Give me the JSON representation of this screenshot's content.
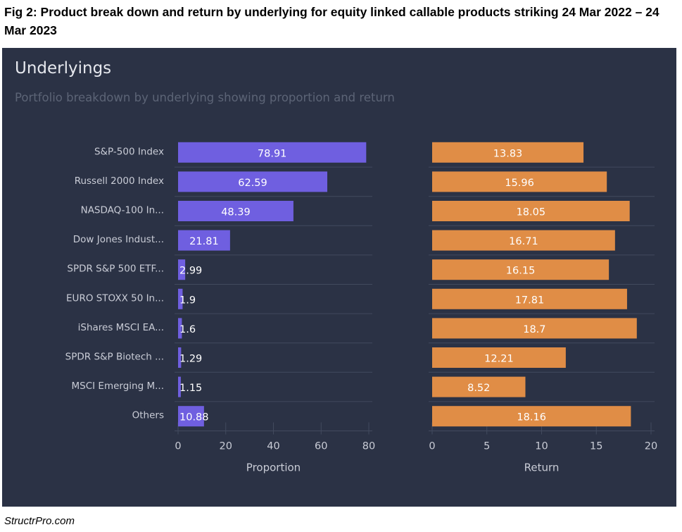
{
  "figure": {
    "title": "Fig 2: Product break down and return by underlying for equity linked callable products striking 24 Mar 2022 – 24 Mar 2023",
    "footer": "StructrPro.com"
  },
  "panel": {
    "title": "Underlyings",
    "subtitle": "Portfolio breakdown by underlying showing proportion and return"
  },
  "colors": {
    "background": "#2b3245",
    "proportion_bar": "#6f5fe0",
    "return_bar": "#e08d46",
    "gridline": "#424a5e",
    "text": "#c9ccd6"
  },
  "chart_data": [
    {
      "type": "bar",
      "orientation": "horizontal",
      "categories": [
        "S&P-500 Index",
        "Russell 2000 Index",
        "NASDAQ-100 In...",
        "Dow Jones Indust...",
        "SPDR S&P 500 ETF...",
        "EURO STOXX 50 In...",
        "iShares MSCI EA...",
        "SPDR S&P Biotech ...",
        "MSCI Emerging M...",
        "Others"
      ],
      "values": [
        78.91,
        62.59,
        48.39,
        21.81,
        2.99,
        1.9,
        1.6,
        1.29,
        1.15,
        10.88
      ],
      "xlabel": "Proportion",
      "xlim": [
        0,
        80
      ],
      "xticks": [
        0,
        20,
        40,
        60,
        80
      ],
      "grid": true,
      "data_labels": true
    },
    {
      "type": "bar",
      "orientation": "horizontal",
      "categories": [
        "S&P-500 Index",
        "Russell 2000 Index",
        "NASDAQ-100 In...",
        "Dow Jones Indust...",
        "SPDR S&P 500 ETF...",
        "EURO STOXX 50 In...",
        "iShares MSCI EA...",
        "SPDR S&P Biotech ...",
        "MSCI Emerging M...",
        "Others"
      ],
      "values": [
        13.83,
        15.96,
        18.05,
        16.71,
        16.15,
        17.81,
        18.7,
        12.21,
        8.52,
        18.16
      ],
      "xlabel": "Return",
      "xlim": [
        0,
        20
      ],
      "xticks": [
        0,
        5,
        10,
        15,
        20
      ],
      "grid": true,
      "data_labels": true
    }
  ]
}
